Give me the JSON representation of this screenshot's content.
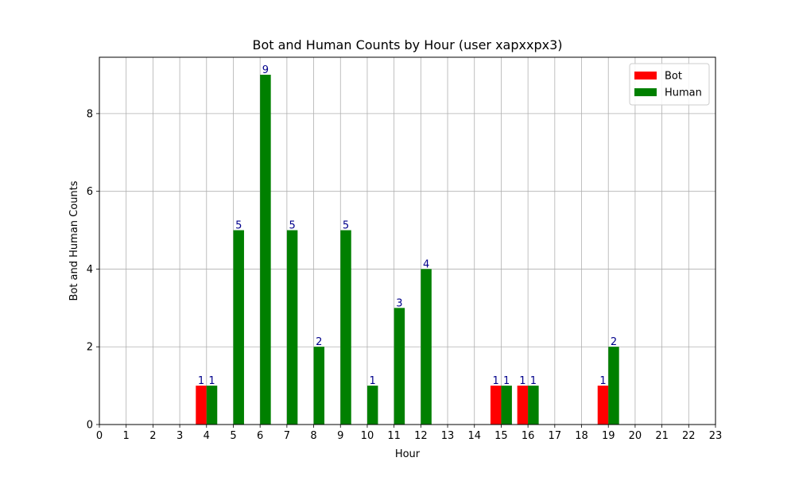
{
  "chart_data": {
    "type": "bar",
    "title": "Bot and Human Counts by Hour (user xapxxpx3)",
    "xlabel": "Hour",
    "ylabel": "Bot and Human Counts",
    "x_ticks": [
      "0",
      "1",
      "2",
      "3",
      "4",
      "5",
      "6",
      "7",
      "8",
      "9",
      "10",
      "11",
      "12",
      "13",
      "14",
      "15",
      "16",
      "17",
      "18",
      "19",
      "20",
      "21",
      "22",
      "23"
    ],
    "y_ticks": [
      "0",
      "2",
      "4",
      "6",
      "8"
    ],
    "xlim": [
      0,
      23
    ],
    "ylim": [
      0,
      9.45
    ],
    "grid": true,
    "legend_position": "top-right",
    "series": [
      {
        "name": "Bot",
        "color": "#ff0000",
        "points": [
          {
            "x": 4,
            "y": 1,
            "label": "1"
          },
          {
            "x": 15,
            "y": 1,
            "label": "1"
          },
          {
            "x": 16,
            "y": 1,
            "label": "1"
          },
          {
            "x": 19,
            "y": 1,
            "label": "1"
          }
        ]
      },
      {
        "name": "Human",
        "color": "#008000",
        "points": [
          {
            "x": 4,
            "y": 1,
            "label": "1"
          },
          {
            "x": 5,
            "y": 5,
            "label": "5"
          },
          {
            "x": 6,
            "y": 9,
            "label": "9"
          },
          {
            "x": 7,
            "y": 5,
            "label": "5"
          },
          {
            "x": 8,
            "y": 2,
            "label": "2"
          },
          {
            "x": 9,
            "y": 5,
            "label": "5"
          },
          {
            "x": 10,
            "y": 1,
            "label": "1"
          },
          {
            "x": 11,
            "y": 3,
            "label": "3"
          },
          {
            "x": 12,
            "y": 4,
            "label": "4"
          },
          {
            "x": 15,
            "y": 1,
            "label": "1"
          },
          {
            "x": 16,
            "y": 1,
            "label": "1"
          },
          {
            "x": 19,
            "y": 2,
            "label": "2"
          }
        ]
      }
    ]
  }
}
